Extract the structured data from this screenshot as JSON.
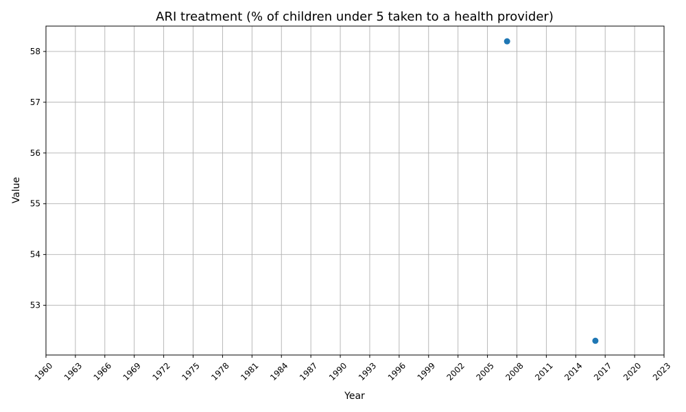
{
  "chart_data": {
    "type": "scatter",
    "title": "ARI treatment (% of children under 5 taken to a health provider)",
    "xlabel": "Year",
    "ylabel": "Value",
    "xlim": [
      1960,
      2023
    ],
    "ylim": [
      52.02,
      58.5
    ],
    "xticks": [
      1960,
      1963,
      1966,
      1969,
      1972,
      1975,
      1978,
      1981,
      1984,
      1987,
      1990,
      1993,
      1996,
      1999,
      2002,
      2005,
      2008,
      2011,
      2014,
      2017,
      2020,
      2023
    ],
    "yticks": [
      53,
      54,
      55,
      56,
      57,
      58
    ],
    "grid": true,
    "x": [
      2007,
      2016
    ],
    "y": [
      58.2,
      52.3
    ],
    "marker_color": "#1f77b4"
  }
}
